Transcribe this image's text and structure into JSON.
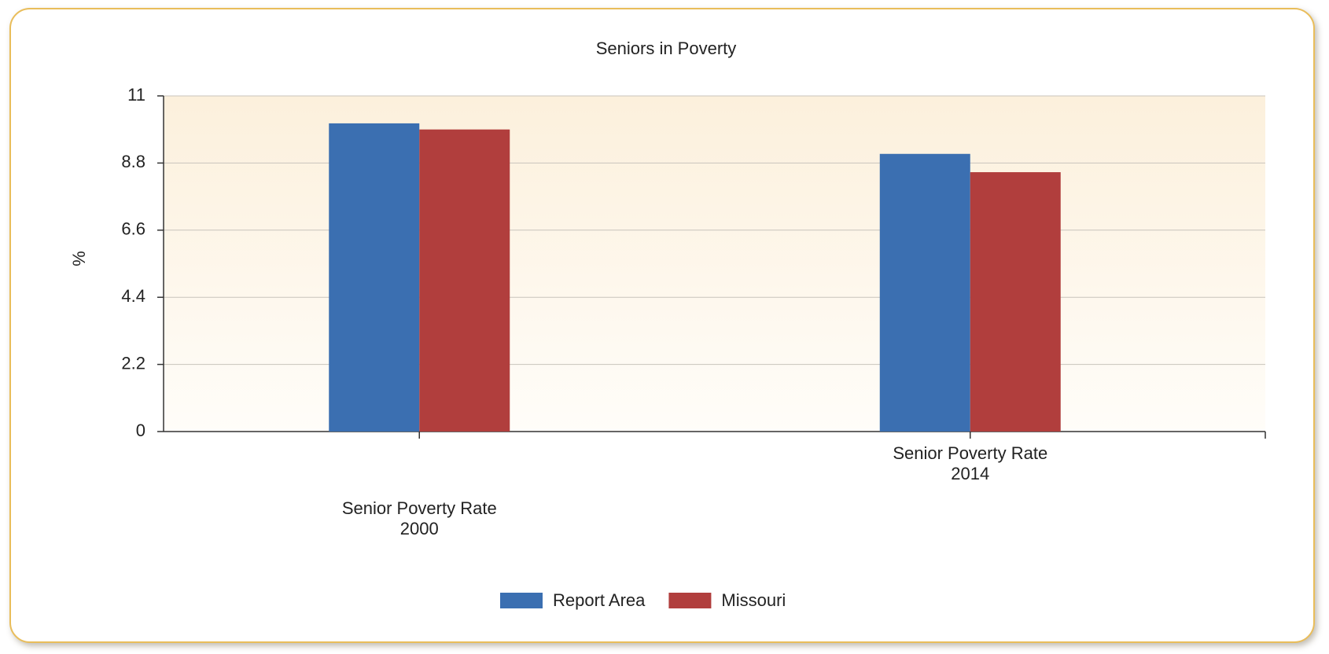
{
  "chart_data": {
    "type": "bar",
    "title": "Seniors in Poverty",
    "y_label": "%",
    "categories": [
      "Senior Poverty Rate\n2000",
      "Senior Poverty Rate\n2014"
    ],
    "series": [
      {
        "name": "Report Area",
        "color": "#3b6fb1",
        "values": [
          10.1,
          9.1
        ]
      },
      {
        "name": "Missouri",
        "color": "#b13e3d",
        "values": [
          9.9,
          8.5
        ]
      }
    ],
    "ylim": [
      0,
      11
    ],
    "yticks": [
      0,
      2.2,
      4.4,
      6.6,
      8.8,
      11
    ],
    "grid": true,
    "legend": "bottom"
  }
}
